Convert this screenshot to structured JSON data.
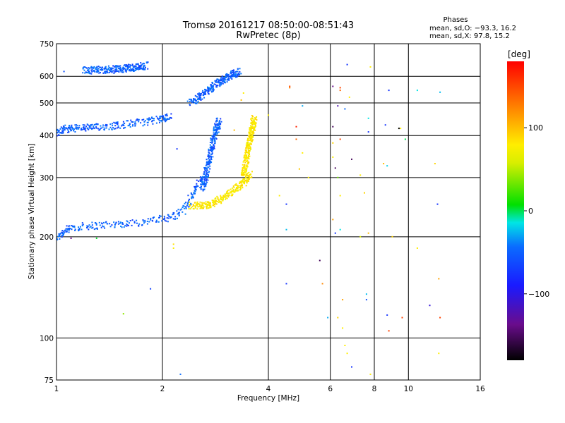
{
  "chart_data": {
    "type": "scatter",
    "title": "Tromsø 20161217 08:50:00-08:51:43",
    "subtitle": "RwPretec (8p)",
    "xlabel": "Frequency [MHz]",
    "ylabel": "Stationary phase Virtual Height [km]",
    "x_scale": "log",
    "y_scale": "log",
    "xlim": [
      1,
      16
    ],
    "ylim": [
      75,
      750
    ],
    "x_ticks": [
      1,
      2,
      4,
      6,
      8,
      10,
      16
    ],
    "x_tick_labels": [
      "1",
      "2",
      "4",
      "6",
      "8",
      "10",
      "16"
    ],
    "y_ticks": [
      75,
      100,
      200,
      300,
      400,
      500,
      600,
      750
    ],
    "y_tick_labels": [
      "75",
      "100",
      "200",
      "300",
      "400",
      "500",
      "600",
      "750"
    ],
    "grid": true,
    "phases": {
      "title": "Phases",
      "line_o": "mean, sd,O: −93.3, 16.2",
      "line_x": "mean, sd,X:  97.8, 15.2"
    },
    "colorbar": {
      "label": "[deg]",
      "range": [
        -180,
        180
      ],
      "ticks": [
        100,
        0,
        -100
      ],
      "tick_labels": [
        "100",
        "0",
        "−100"
      ],
      "colormap": "rainbow (black-purple-blue-cyan-green-yellow-orange-red)"
    },
    "series": [
      {
        "mode": "O",
        "phase_mean": -93.3,
        "phase_sd": 16.2,
        "traces": [
          {
            "segment": "E/F1 trace",
            "x": [
              1.0,
              1.05,
              1.1,
              1.2,
              1.3,
              1.45,
              1.6,
              1.8,
              2.0,
              2.15,
              2.3,
              2.4,
              2.5,
              2.6
            ],
            "y": [
              198,
              208,
              212,
              215,
              216,
              218,
              219,
              222,
              226,
              230,
              240,
              260,
              280,
              300
            ]
          },
          {
            "segment": "F2 trace",
            "x": [
              1.0,
              1.05,
              1.1,
              1.2,
              1.3,
              1.45,
              1.6,
              1.8,
              2.0,
              2.1
            ],
            "y": [
              405,
              418,
              420,
              422,
              423,
              428,
              433,
              440,
              448,
              455
            ]
          },
          {
            "segment": "F2 cusp",
            "x": [
              2.6,
              2.65,
              2.7,
              2.75,
              2.8,
              2.85,
              2.9
            ],
            "y": [
              280,
              300,
              330,
              360,
              390,
              420,
              440
            ]
          },
          {
            "segment": "upper echo",
            "x": [
              2.4,
              2.55,
              2.7,
              2.85,
              3.0,
              3.15,
              3.3
            ],
            "y": [
              500,
              520,
              545,
              570,
              590,
              605,
              620
            ]
          },
          {
            "segment": "top band",
            "x": [
              1.2,
              1.35,
              1.5,
              1.65,
              1.8
            ],
            "y": [
              625,
              627,
              630,
              637,
              645
            ]
          }
        ]
      },
      {
        "mode": "X",
        "phase_mean": 97.8,
        "phase_sd": 15.2,
        "traces": [
          {
            "segment": "X trace",
            "x": [
              2.4,
              2.6,
              2.8,
              3.0,
              3.2,
              3.4,
              3.55
            ],
            "y": [
              248,
              248,
              252,
              262,
              275,
              290,
              310
            ]
          },
          {
            "segment": "X cusp",
            "x": [
              3.4,
              3.45,
              3.5,
              3.55,
              3.6,
              3.65
            ],
            "y": [
              300,
              330,
              360,
              390,
              420,
              450
            ]
          }
        ]
      }
    ],
    "scattered_points": [
      {
        "x": 1.05,
        "y": 620,
        "phase": -100
      },
      {
        "x": 1.1,
        "y": 198,
        "phase": -150
      },
      {
        "x": 1.3,
        "y": 198,
        "phase": -5
      },
      {
        "x": 1.55,
        "y": 118,
        "phase": 40
      },
      {
        "x": 1.85,
        "y": 140,
        "phase": -105
      },
      {
        "x": 2.15,
        "y": 190,
        "phase": 105
      },
      {
        "x": 2.15,
        "y": 185,
        "phase": 95
      },
      {
        "x": 2.2,
        "y": 365,
        "phase": -110
      },
      {
        "x": 2.25,
        "y": 78,
        "phase": -90
      },
      {
        "x": 3.2,
        "y": 415,
        "phase": 120
      },
      {
        "x": 3.35,
        "y": 510,
        "phase": 120
      },
      {
        "x": 3.4,
        "y": 535,
        "phase": 100
      },
      {
        "x": 4.0,
        "y": 460,
        "phase": 95
      },
      {
        "x": 4.3,
        "y": 265,
        "phase": 100
      },
      {
        "x": 4.5,
        "y": 250,
        "phase": -110
      },
      {
        "x": 4.5,
        "y": 210,
        "phase": -50
      },
      {
        "x": 4.5,
        "y": 145,
        "phase": -110
      },
      {
        "x": 4.6,
        "y": 555,
        "phase": 140
      },
      {
        "x": 4.6,
        "y": 560,
        "phase": 160
      },
      {
        "x": 4.8,
        "y": 425,
        "phase": 170
      },
      {
        "x": 4.8,
        "y": 390,
        "phase": 150
      },
      {
        "x": 4.9,
        "y": 318,
        "phase": 115
      },
      {
        "x": 5.0,
        "y": 355,
        "phase": 100
      },
      {
        "x": 5.0,
        "y": 490,
        "phase": -60
      },
      {
        "x": 5.2,
        "y": 300,
        "phase": 100
      },
      {
        "x": 5.6,
        "y": 170,
        "phase": -160
      },
      {
        "x": 5.7,
        "y": 145,
        "phase": 140
      },
      {
        "x": 5.9,
        "y": 115,
        "phase": -60
      },
      {
        "x": 6.1,
        "y": 560,
        "phase": -150
      },
      {
        "x": 6.1,
        "y": 425,
        "phase": -160
      },
      {
        "x": 6.1,
        "y": 380,
        "phase": 110
      },
      {
        "x": 6.1,
        "y": 345,
        "phase": 95
      },
      {
        "x": 6.1,
        "y": 225,
        "phase": 130
      },
      {
        "x": 6.2,
        "y": 205,
        "phase": -110
      },
      {
        "x": 6.2,
        "y": 320,
        "phase": -160
      },
      {
        "x": 6.3,
        "y": 490,
        "phase": -140
      },
      {
        "x": 6.3,
        "y": 300,
        "phase": 30
      },
      {
        "x": 6.3,
        "y": 115,
        "phase": 110
      },
      {
        "x": 6.4,
        "y": 545,
        "phase": 150
      },
      {
        "x": 6.4,
        "y": 555,
        "phase": 160
      },
      {
        "x": 6.4,
        "y": 390,
        "phase": 160
      },
      {
        "x": 6.4,
        "y": 265,
        "phase": 100
      },
      {
        "x": 6.4,
        "y": 210,
        "phase": -30
      },
      {
        "x": 6.5,
        "y": 130,
        "phase": 130
      },
      {
        "x": 6.5,
        "y": 107,
        "phase": 100
      },
      {
        "x": 6.6,
        "y": 480,
        "phase": -90
      },
      {
        "x": 6.6,
        "y": 95,
        "phase": 100
      },
      {
        "x": 6.7,
        "y": 90,
        "phase": 100
      },
      {
        "x": 6.7,
        "y": 650,
        "phase": -110
      },
      {
        "x": 6.8,
        "y": 520,
        "phase": 100
      },
      {
        "x": 6.9,
        "y": 340,
        "phase": -160
      },
      {
        "x": 6.9,
        "y": 82,
        "phase": -110
      },
      {
        "x": 7.3,
        "y": 305,
        "phase": 100
      },
      {
        "x": 7.3,
        "y": 200,
        "phase": 60
      },
      {
        "x": 7.5,
        "y": 270,
        "phase": 110
      },
      {
        "x": 7.6,
        "y": 135,
        "phase": -50
      },
      {
        "x": 7.6,
        "y": 130,
        "phase": -100
      },
      {
        "x": 7.7,
        "y": 450,
        "phase": -30
      },
      {
        "x": 7.7,
        "y": 410,
        "phase": -110
      },
      {
        "x": 7.7,
        "y": 205,
        "phase": 120
      },
      {
        "x": 7.8,
        "y": 640,
        "phase": 100
      },
      {
        "x": 7.8,
        "y": 78,
        "phase": 100
      },
      {
        "x": 8.5,
        "y": 330,
        "phase": 120
      },
      {
        "x": 8.6,
        "y": 430,
        "phase": -110
      },
      {
        "x": 8.7,
        "y": 325,
        "phase": -40
      },
      {
        "x": 8.7,
        "y": 117,
        "phase": -110
      },
      {
        "x": 8.8,
        "y": 545,
        "phase": -110
      },
      {
        "x": 8.8,
        "y": 105,
        "phase": 160
      },
      {
        "x": 9.0,
        "y": 200,
        "phase": 110
      },
      {
        "x": 9.4,
        "y": 420,
        "phase": -180
      },
      {
        "x": 9.5,
        "y": 420,
        "phase": 100
      },
      {
        "x": 9.6,
        "y": 115,
        "phase": 160
      },
      {
        "x": 9.8,
        "y": 390,
        "phase": -10
      },
      {
        "x": 10.6,
        "y": 185,
        "phase": 100
      },
      {
        "x": 10.6,
        "y": 545,
        "phase": -30
      },
      {
        "x": 11.5,
        "y": 125,
        "phase": -130
      },
      {
        "x": 11.9,
        "y": 330,
        "phase": 110
      },
      {
        "x": 12.1,
        "y": 250,
        "phase": -110
      },
      {
        "x": 12.2,
        "y": 150,
        "phase": 130
      },
      {
        "x": 12.3,
        "y": 115,
        "phase": 160
      },
      {
        "x": 12.2,
        "y": 90,
        "phase": 100
      },
      {
        "x": 12.3,
        "y": 538,
        "phase": -50
      }
    ]
  }
}
